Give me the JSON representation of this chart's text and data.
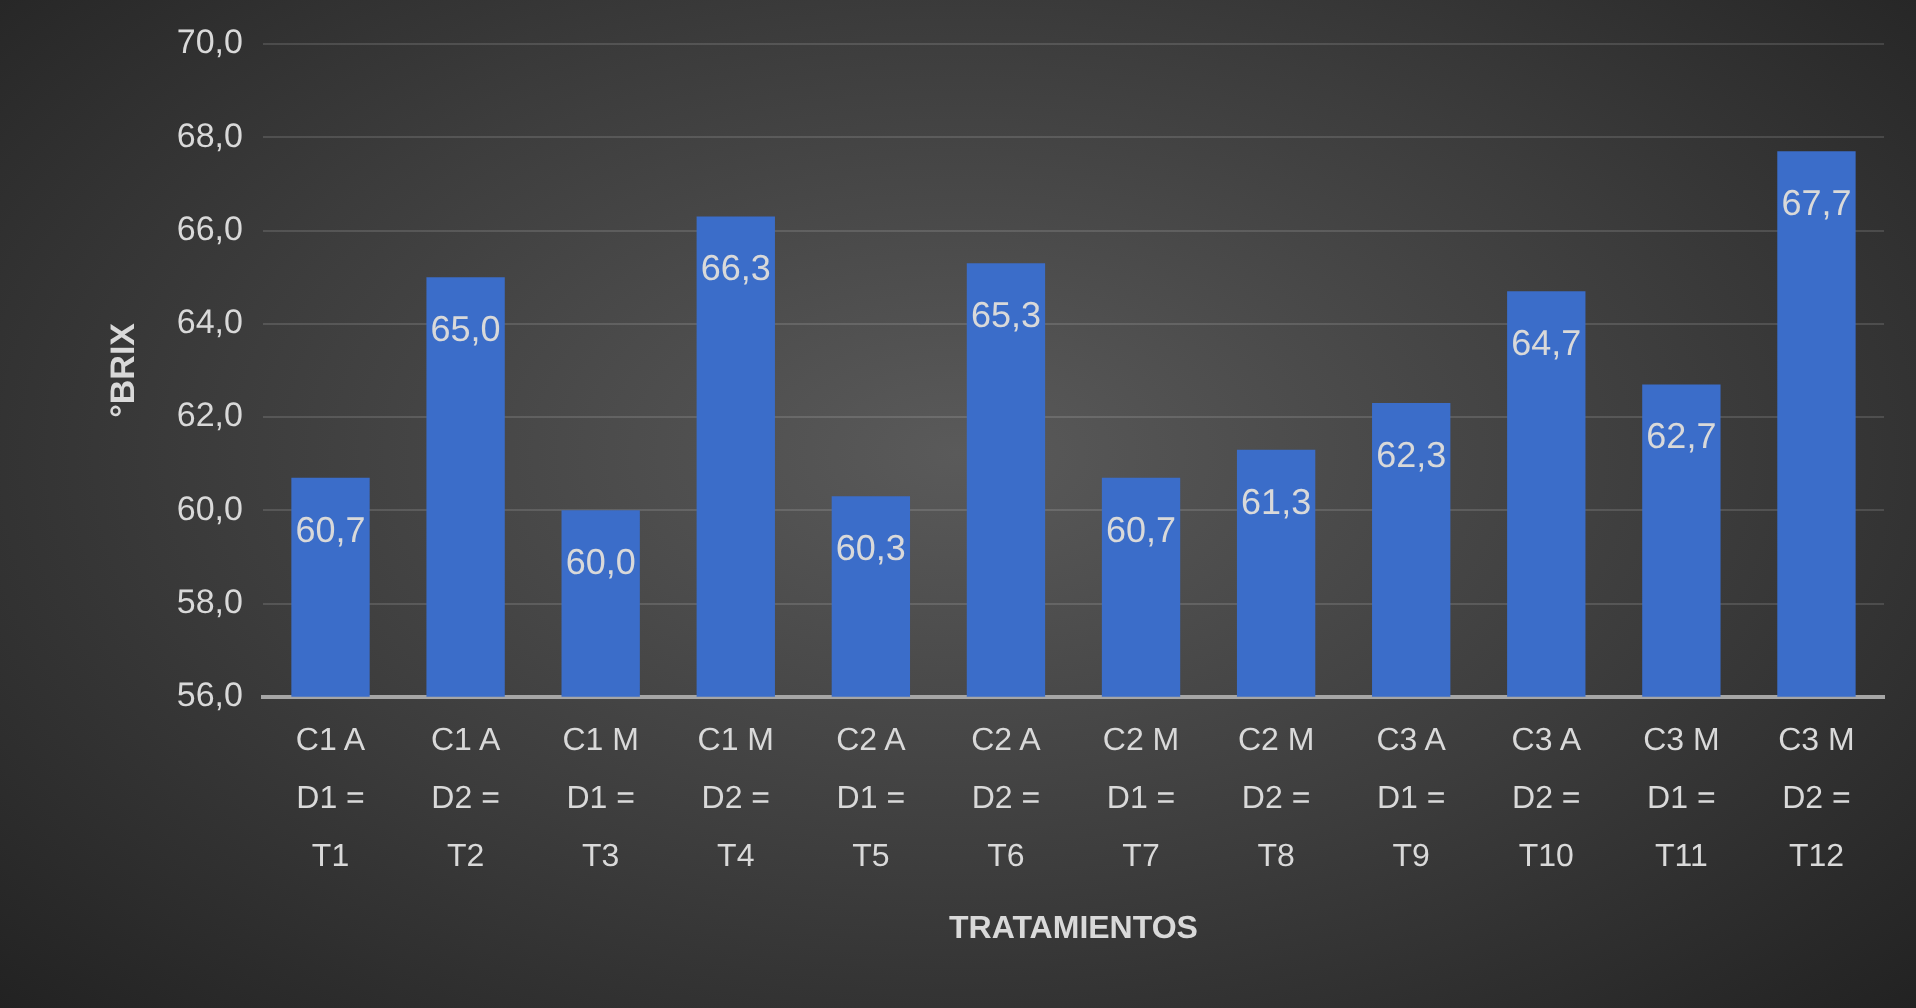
{
  "chart_data": {
    "type": "bar",
    "categories": [
      "C1 A D1 = T1",
      "C1 A D2 = T2",
      "C1 M D1 = T3",
      "C1 M D2 = T4",
      "C2 A D1 = T5",
      "C2 A D2 = T6",
      "C2 M D1 = T7",
      "C2 M D2 = T8",
      "C3 A D1 = T9",
      "C3 A D2 = T10",
      "C3 M D1 = T11",
      "C3 M D2 = T12"
    ],
    "values": [
      60.7,
      65.0,
      60.0,
      66.3,
      60.3,
      65.3,
      60.7,
      61.3,
      62.3,
      64.7,
      62.7,
      67.7
    ],
    "value_labels": [
      "60,7",
      "65,0",
      "60,0",
      "66,3",
      "60,3",
      "65,3",
      "60,7",
      "61,3",
      "62,3",
      "64,7",
      "62,7",
      "67,7"
    ],
    "color": "#3b6dc9",
    "ylim": [
      56,
      70
    ],
    "yticks": [
      {
        "value": 56,
        "label": "56,0"
      },
      {
        "value": 58,
        "label": "58,0"
      },
      {
        "value": 60,
        "label": "60,0"
      },
      {
        "value": 62,
        "label": "62,0"
      },
      {
        "value": 64,
        "label": "64,0"
      },
      {
        "value": 66,
        "label": "66,0"
      },
      {
        "value": 68,
        "label": "68,0"
      },
      {
        "value": 70,
        "label": "70,0"
      }
    ],
    "xlabel": "TRATAMIENTOS",
    "ylabel": "°BRIX",
    "grid": "y"
  }
}
